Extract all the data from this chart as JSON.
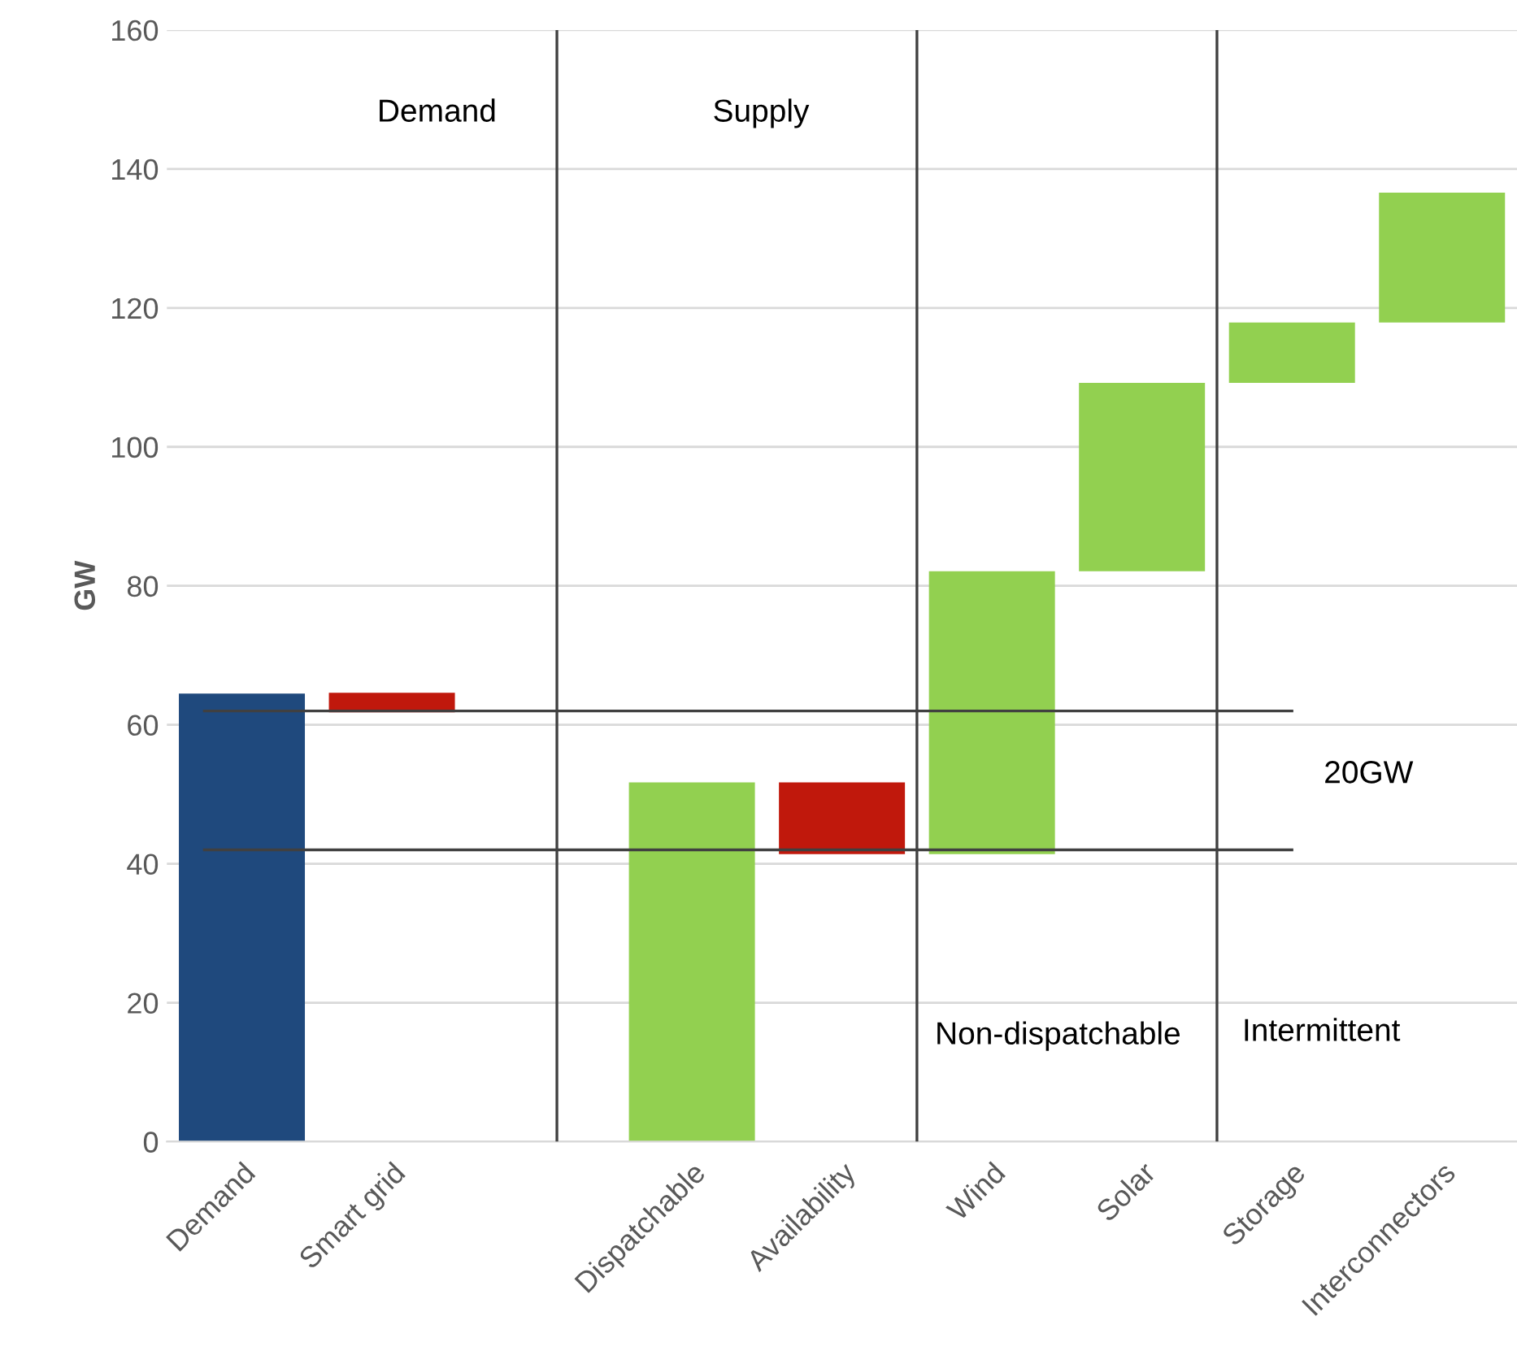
{
  "chart_data": {
    "type": "bar",
    "ylabel": "GW",
    "categories": [
      "Demand",
      "Smart grid",
      null,
      "Dispatchable",
      "Availability",
      "Wind",
      "Solar",
      "Storage",
      "Interconnectors"
    ],
    "values": [
      64.5,
      2.8,
      null,
      51.7,
      10.3,
      40.7,
      27.1,
      8.7,
      18.7
    ],
    "base": [
      0,
      61.8,
      null,
      0,
      41.4,
      41.4,
      82.1,
      109.2,
      117.9
    ],
    "colors": [
      "#1f497d",
      "#c0180c",
      null,
      "#92d050",
      "#c0180c",
      "#92d050",
      "#92d050",
      "#92d050",
      "#92d050"
    ],
    "ylim": [
      0,
      160
    ],
    "yticks": [
      0,
      20,
      40,
      60,
      80,
      100,
      120,
      140,
      160
    ],
    "grid": "y",
    "ref_lines": [
      {
        "axis": "y",
        "value": 62,
        "color": "#404040"
      },
      {
        "axis": "y",
        "value": 42,
        "color": "#404040"
      }
    ],
    "annotations": [
      "Demand",
      "Supply",
      "Non-dispatchable",
      "Intermittent",
      "20GW"
    ]
  }
}
